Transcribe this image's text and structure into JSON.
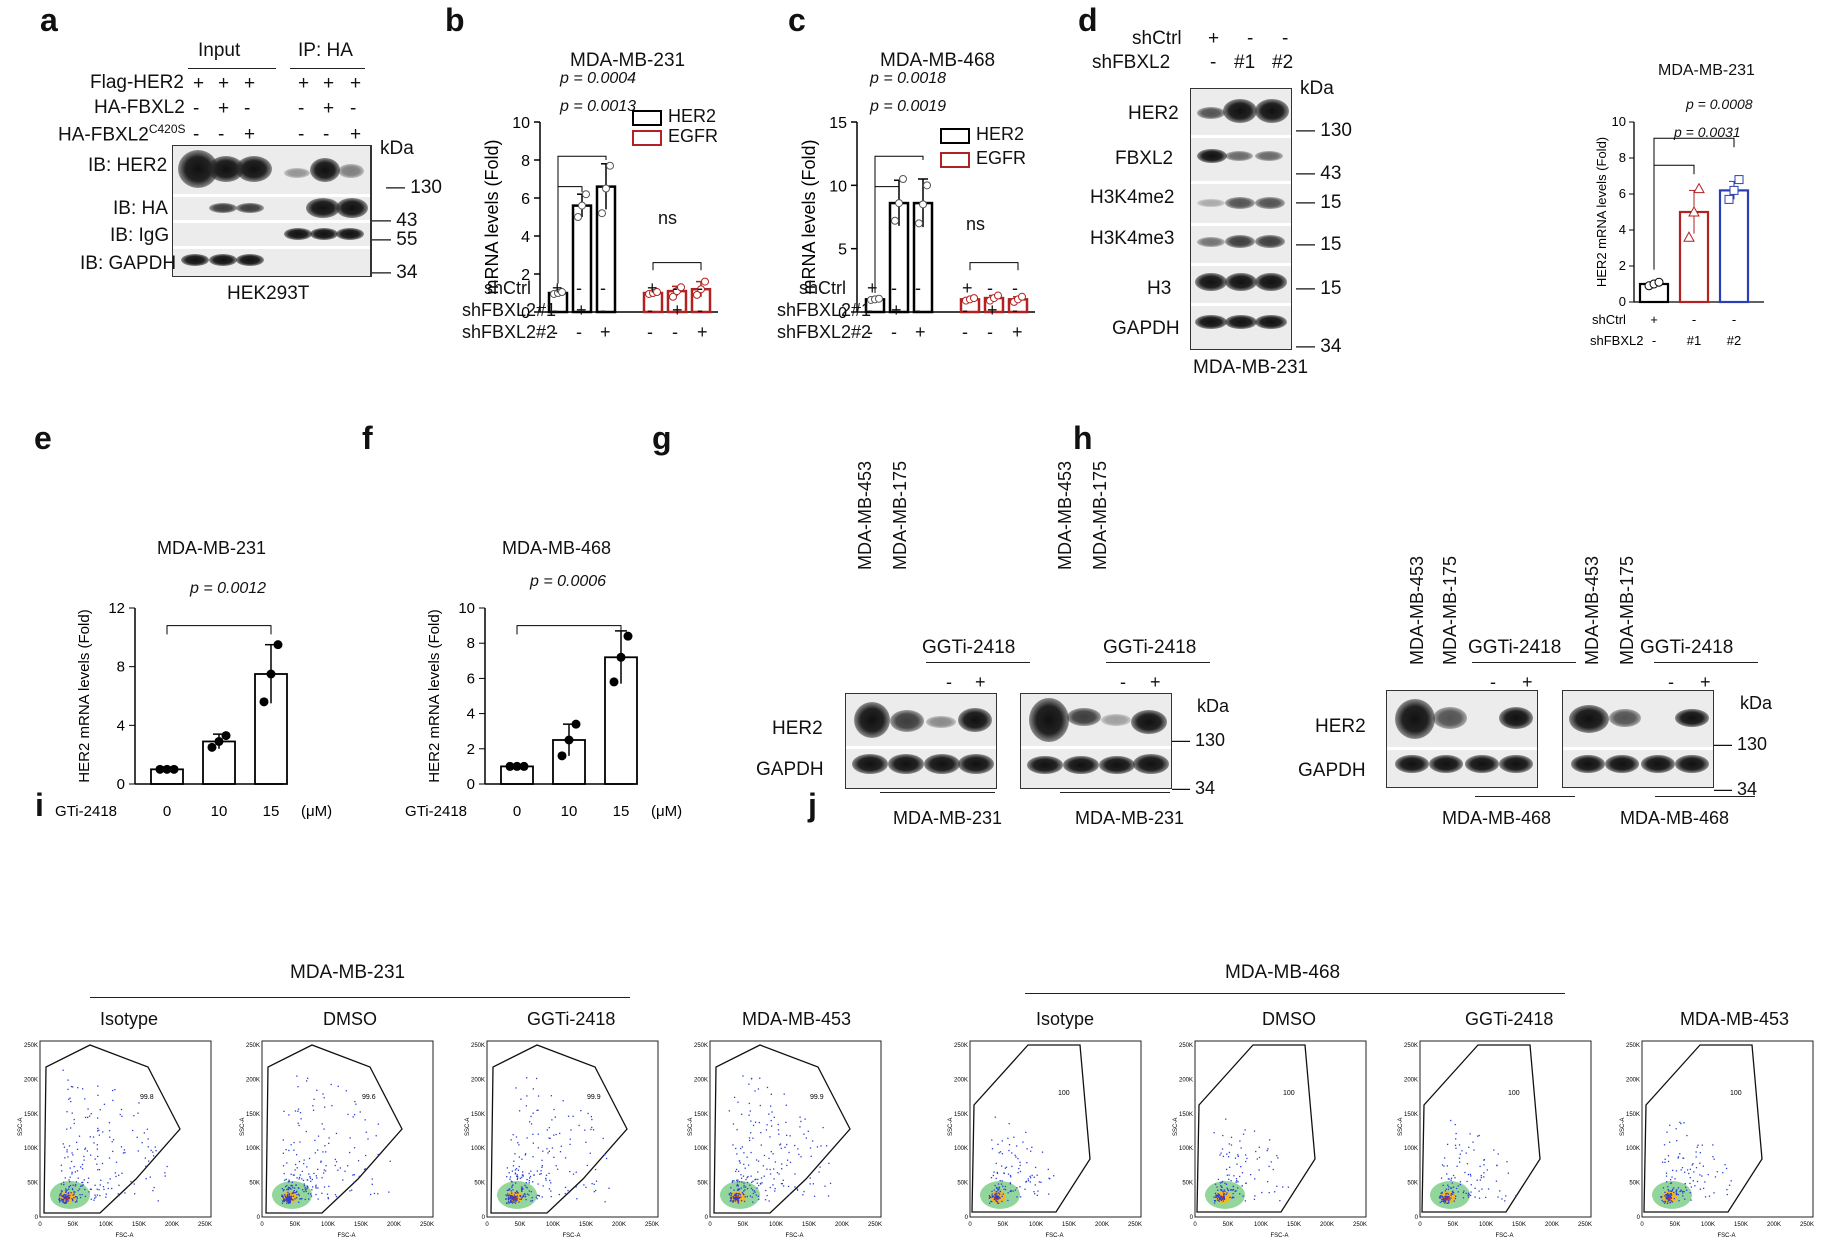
{
  "panel_letters": {
    "a": "a",
    "b": "b",
    "c": "c",
    "d": "d",
    "e": "e",
    "f": "f",
    "g": "g",
    "h": "h",
    "i": "i",
    "j": "j"
  },
  "a": {
    "input": "Input",
    "ip": "IP: HA",
    "rows": [
      {
        "label": "Flag-HER2",
        "vals": [
          "+",
          "+",
          "+",
          "+",
          "+",
          "+"
        ]
      },
      {
        "label": "HA-FBXL2",
        "vals": [
          "-",
          "+",
          "-",
          "-",
          "+",
          "-"
        ]
      },
      {
        "label": "HA-FBXL2C420S",
        "vals": [
          "-",
          "-",
          "+",
          "-",
          "-",
          "+"
        ]
      }
    ],
    "row3_main": "HA-FBXL2",
    "row3_sup": "C420S",
    "blots": [
      "IB: HER2",
      "IB: HA",
      "IB: IgG",
      "IB: GAPDH"
    ],
    "kda": "kDa",
    "markers": [
      "130",
      "43",
      "55",
      "34"
    ],
    "cell": "HEK293T"
  },
  "b": {
    "title": "MDA-MB-231",
    "ylabel": "mRNA levels (Fold)",
    "p1": "p = 0.0004",
    "p2": "p = 0.0013",
    "ns": "ns",
    "legend": [
      "HER2",
      "EGFR"
    ],
    "rows": [
      {
        "label": "shCtrl",
        "vals": [
          "+",
          "-",
          "-",
          "+",
          "-",
          "-"
        ]
      },
      {
        "label": "shFBXL2#1",
        "vals": [
          "-",
          "+",
          "-",
          "-",
          "+",
          "-"
        ]
      },
      {
        "label": "shFBXL2#2",
        "vals": [
          "-",
          "-",
          "+",
          "-",
          "-",
          "+"
        ]
      }
    ]
  },
  "c": {
    "title": "MDA-MB-468",
    "ylabel": "mRNA levels (Fold)",
    "p1": "p = 0.0018",
    "p2": "p = 0.0019",
    "ns": "ns",
    "legend": [
      "HER2",
      "EGFR"
    ],
    "rows": [
      {
        "label": "shCtrl",
        "vals": [
          "+",
          "-",
          "-",
          "+",
          "-",
          "-"
        ]
      },
      {
        "label": "shFBXL2#1",
        "vals": [
          "-",
          "+",
          "-",
          "-",
          "+",
          "-"
        ]
      },
      {
        "label": "shFBXL2#2",
        "vals": [
          "-",
          "-",
          "+",
          "-",
          "-",
          "+"
        ]
      }
    ]
  },
  "d": {
    "shctrl": "shCtrl",
    "shfbxl2": "shFBXL2",
    "ctrl_vals": [
      "+",
      "-",
      "-"
    ],
    "fb_vals": [
      "-",
      "#1",
      "#2"
    ],
    "kda": "kDa",
    "blots": [
      "HER2",
      "FBXL2",
      "H3K4me2",
      "H3K4me3",
      "H3",
      "GAPDH"
    ],
    "markers": [
      "130",
      "43",
      "15",
      "15",
      "15",
      "34"
    ],
    "cell": "MDA-MB-231",
    "chart_title": "MDA-MB-231",
    "ylabel": "HER2 mRNA levels (Fold)",
    "p1": "p = 0.0008",
    "p2": "p = 0.0031",
    "xrows": [
      {
        "label": "shCtrl",
        "vals": [
          "+",
          "-",
          "-"
        ]
      },
      {
        "label": "shFBXL2",
        "vals": [
          "-",
          "#1",
          "#2"
        ]
      }
    ]
  },
  "e": {
    "title": "MDA-MB-231",
    "ylabel": "HER2 mRNA levels (Fold)",
    "p": "p = 0.0012",
    "xname": "GGTi-2418",
    "xvals": [
      "0",
      "10",
      "15"
    ],
    "unit": "(μM)"
  },
  "f": {
    "title": "MDA-MB-468",
    "ylabel": "HER2 mRNA levels (Fold)",
    "p": "p = 0.0006",
    "xname": "GGTi-2418",
    "xvals": [
      "0",
      "10",
      "15"
    ],
    "unit": "(μM)"
  },
  "g": {
    "lanes": [
      "MDA-MB-453",
      "MDA-MB-175"
    ],
    "ggti": "GGTi-2418",
    "minus": "-",
    "plus": "+",
    "blots": [
      "HER2",
      "GAPDH"
    ],
    "kda": "kDa",
    "markers": [
      "130",
      "34"
    ],
    "cell": "MDA-MB-231"
  },
  "h": {
    "lanes": [
      "MDA-MB-453",
      "MDA-MB-175"
    ],
    "ggti": "GGTi-2418",
    "minus": "-",
    "plus": "+",
    "blots": [
      "HER2",
      "GAPDH"
    ],
    "kda": "kDa",
    "markers": [
      "130",
      "34"
    ],
    "cell": "MDA-MB-468"
  },
  "i": {
    "cell": "MDA-MB-231",
    "plots": [
      {
        "title": "Isotype",
        "gate": "99.8"
      },
      {
        "title": "DMSO",
        "gate": "99.6"
      },
      {
        "title": "GGTi-2418",
        "gate": "99.9"
      },
      {
        "title": "MDA-MB-453",
        "gate": "99.9"
      }
    ]
  },
  "j": {
    "cell": "MDA-MB-468",
    "plots": [
      {
        "title": "Isotype",
        "gate": "100"
      },
      {
        "title": "DMSO",
        "gate": "100"
      },
      {
        "title": "GGTi-2418",
        "gate": "100"
      },
      {
        "title": "MDA-MB-453",
        "gate": "100"
      }
    ]
  },
  "flow_axes": {
    "x": "FSC-A",
    "y": "SSC-A",
    "xticks": [
      "0",
      "50K",
      "100K",
      "150K",
      "200K",
      "250K"
    ],
    "yticks": [
      "0",
      "50K",
      "100K",
      "150K",
      "200K",
      "250K"
    ]
  },
  "chart_data": [
    {
      "panel": "b",
      "type": "bar",
      "title": "MDA-MB-231",
      "xlabel": "",
      "ylabel": "mRNA levels (Fold)",
      "ylim": [
        0,
        10
      ],
      "yticks": [
        "0",
        "2",
        "4",
        "6",
        "8",
        "10"
      ],
      "categories": [
        "shCtrl",
        "shFBXL2#1",
        "shFBXL2#2"
      ],
      "series": [
        {
          "name": "HER2",
          "color": "#000000",
          "values": [
            1.0,
            5.6,
            6.6
          ],
          "errors": [
            0.05,
            0.6,
            1.2
          ],
          "points": [
            [
              0.95,
              1.0,
              1.05
            ],
            [
              5.0,
              5.6,
              6.2
            ],
            [
              5.2,
              6.5,
              7.7
            ]
          ]
        },
        {
          "name": "EGFR",
          "color": "#b22222",
          "values": [
            1.0,
            1.1,
            1.2
          ],
          "errors": [
            0.05,
            0.25,
            0.4
          ],
          "points": [
            [
              0.95,
              1.0,
              1.05
            ],
            [
              0.8,
              1.1,
              1.3
            ],
            [
              0.9,
              1.2,
              1.6
            ]
          ]
        }
      ]
    },
    {
      "panel": "c",
      "type": "bar",
      "title": "MDA-MB-468",
      "xlabel": "",
      "ylabel": "mRNA levels (Fold)",
      "ylim": [
        0,
        15
      ],
      "yticks": [
        "0",
        "5",
        "10",
        "15"
      ],
      "categories": [
        "shCtrl",
        "shFBXL2#1",
        "shFBXL2#2"
      ],
      "series": [
        {
          "name": "HER2",
          "color": "#000000",
          "values": [
            1.0,
            8.6,
            8.6
          ],
          "errors": [
            0.05,
            1.8,
            1.9
          ],
          "points": [
            [
              0.95,
              1.0,
              1.05
            ],
            [
              7.2,
              8.6,
              10.5
            ],
            [
              7.0,
              8.5,
              10.0
            ]
          ]
        },
        {
          "name": "EGFR",
          "color": "#b22222",
          "values": [
            1.0,
            1.1,
            1.0
          ],
          "errors": [
            0.1,
            0.2,
            0.2
          ],
          "points": [
            [
              0.9,
              1.0,
              1.1
            ],
            [
              0.9,
              1.1,
              1.3
            ],
            [
              0.8,
              1.0,
              1.2
            ]
          ]
        }
      ]
    },
    {
      "panel": "d",
      "type": "bar",
      "title": "MDA-MB-231",
      "xlabel": "",
      "ylabel": "HER2 mRNA levels (Fold)",
      "ylim": [
        0,
        10
      ],
      "yticks": [
        "0",
        "2",
        "4",
        "6",
        "8",
        "10"
      ],
      "categories": [
        "shCtrl",
        "shFBXL2 #1",
        "shFBXL2 #2"
      ],
      "series": [
        {
          "values": [
            1.0,
            5.0,
            6.2
          ],
          "errors": [
            0.1,
            1.2,
            0.5
          ],
          "colors": [
            "#000000",
            "#b22222",
            "#2a3fb5"
          ],
          "points": [
            [
              0.9,
              1.0,
              1.1
            ],
            [
              3.6,
              5.0,
              6.3
            ],
            [
              5.7,
              6.2,
              6.8
            ]
          ]
        }
      ]
    },
    {
      "panel": "e",
      "type": "bar",
      "title": "MDA-MB-231",
      "xlabel": "GGTi-2418 (μM)",
      "ylabel": "HER2 mRNA levels (Fold)",
      "ylim": [
        0,
        12
      ],
      "yticks": [
        "0",
        "4",
        "8",
        "12"
      ],
      "categories": [
        "0",
        "10",
        "15"
      ],
      "series": [
        {
          "values": [
            1.0,
            2.9,
            7.5
          ],
          "errors": [
            0.05,
            0.5,
            2.0
          ],
          "points": [
            [
              1.0,
              1.0,
              1.0
            ],
            [
              2.5,
              2.9,
              3.3
            ],
            [
              5.6,
              7.5,
              9.5
            ]
          ]
        }
      ]
    },
    {
      "panel": "f",
      "type": "bar",
      "title": "MDA-MB-468",
      "xlabel": "GGTi-2418 (μM)",
      "ylabel": "HER2 mRNA levels (Fold)",
      "ylim": [
        0,
        10
      ],
      "yticks": [
        "0",
        "2",
        "4",
        "6",
        "8",
        "10"
      ],
      "categories": [
        "0",
        "10",
        "15"
      ],
      "series": [
        {
          "values": [
            1.0,
            2.5,
            7.2
          ],
          "errors": [
            0.05,
            0.9,
            1.5
          ],
          "points": [
            [
              1.0,
              1.0,
              1.0
            ],
            [
              1.6,
              2.5,
              3.4
            ],
            [
              5.8,
              7.2,
              8.4
            ]
          ]
        }
      ]
    }
  ]
}
